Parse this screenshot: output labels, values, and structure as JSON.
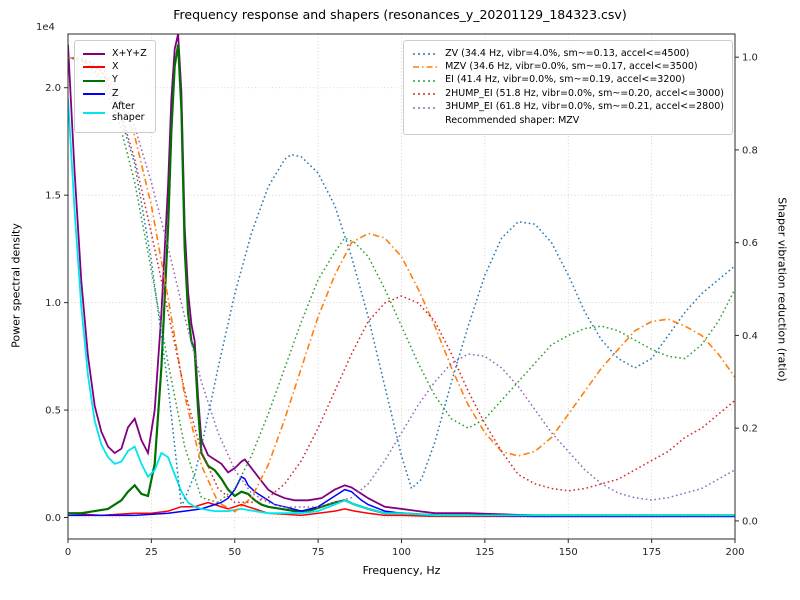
{
  "figure": {
    "title": "Frequency response and shapers (resonances_y_20201129_184323.csv)",
    "xlabel": "Frequency, Hz",
    "ylabel_left": "Power spectral density",
    "ylabel_right": "Shaper vibration reduction (ratio)",
    "offset_text": "1e4",
    "background": "#ffffff"
  },
  "chart_data": {
    "type": "line",
    "title": "Frequency response and shapers (resonances_y_20201129_184323.csv)",
    "xlabel": "Frequency, Hz",
    "ylabel_left": "Power spectral density",
    "ylabel_right": "Shaper vibration reduction (ratio)",
    "y_scale_left": "1e4",
    "xlim": [
      0,
      200
    ],
    "ylim_left": [
      -0.1,
      2.25
    ],
    "ylim_right": [
      -0.039,
      1.05
    ],
    "x_ticks": [
      0,
      25,
      50,
      75,
      100,
      125,
      150,
      175,
      200
    ],
    "y_ticks_left": [
      0.0,
      0.5,
      1.0,
      1.5,
      2.0
    ],
    "y_ticks_right": [
      0.0,
      0.2,
      0.4,
      0.6,
      0.8,
      1.0
    ],
    "grid": true,
    "grid_color": "#c9c9c9",
    "series": [
      {
        "id": "xyz",
        "name": "X+Y+Z",
        "axis": "left",
        "color": "#800080",
        "dash": "solid",
        "width": 1.8,
        "x": [
          0,
          2,
          4,
          6,
          8,
          10,
          12,
          14,
          16,
          18,
          20,
          22,
          24,
          26,
          28,
          30,
          31,
          32,
          33,
          34,
          35,
          36,
          37,
          38,
          39,
          40,
          42,
          44,
          46,
          48,
          50,
          52,
          53,
          54,
          56,
          58,
          60,
          62,
          65,
          68,
          72,
          76,
          80,
          83,
          85,
          88,
          90,
          95,
          100,
          105,
          110,
          120,
          130,
          140,
          160,
          180,
          200
        ],
        "y": [
          2.2,
          1.6,
          1.1,
          0.75,
          0.52,
          0.4,
          0.33,
          0.3,
          0.32,
          0.42,
          0.46,
          0.36,
          0.3,
          0.5,
          0.95,
          1.55,
          1.95,
          2.18,
          2.25,
          1.98,
          1.35,
          1.05,
          0.9,
          0.82,
          0.56,
          0.36,
          0.29,
          0.27,
          0.25,
          0.21,
          0.23,
          0.26,
          0.27,
          0.25,
          0.21,
          0.17,
          0.13,
          0.11,
          0.09,
          0.08,
          0.08,
          0.09,
          0.13,
          0.15,
          0.14,
          0.11,
          0.09,
          0.05,
          0.04,
          0.03,
          0.02,
          0.02,
          0.015,
          0.01,
          0.01,
          0.01,
          0.01
        ]
      },
      {
        "id": "x",
        "name": "X",
        "axis": "left",
        "color": "#ff0000",
        "dash": "solid",
        "width": 1.5,
        "x": [
          0,
          10,
          20,
          25,
          30,
          32,
          34,
          36,
          38,
          40,
          42,
          44,
          46,
          48,
          50,
          52,
          54,
          56,
          58,
          60,
          65,
          70,
          75,
          80,
          83,
          86,
          90,
          95,
          100,
          110,
          120,
          140,
          160,
          180,
          200
        ],
        "y": [
          0.02,
          0.01,
          0.02,
          0.02,
          0.03,
          0.04,
          0.05,
          0.05,
          0.05,
          0.06,
          0.07,
          0.06,
          0.05,
          0.04,
          0.05,
          0.06,
          0.05,
          0.04,
          0.03,
          0.02,
          0.015,
          0.01,
          0.02,
          0.03,
          0.04,
          0.03,
          0.02,
          0.01,
          0.01,
          0.005,
          0.005,
          0.005,
          0.005,
          0.005,
          0.005
        ]
      },
      {
        "id": "y",
        "name": "Y",
        "axis": "left",
        "color": "#007000",
        "dash": "solid",
        "width": 2.2,
        "x": [
          0,
          4,
          8,
          12,
          16,
          18,
          20,
          22,
          24,
          26,
          28,
          30,
          31,
          32,
          33,
          34,
          35,
          36,
          37,
          38,
          39,
          40,
          42,
          44,
          46,
          48,
          50,
          52,
          54,
          56,
          58,
          60,
          64,
          68,
          72,
          76,
          80,
          83,
          86,
          90,
          95,
          100,
          110,
          120,
          140,
          160,
          180,
          200
        ],
        "y": [
          0.02,
          0.02,
          0.03,
          0.04,
          0.08,
          0.12,
          0.15,
          0.11,
          0.1,
          0.25,
          0.7,
          1.35,
          1.8,
          2.1,
          2.2,
          1.9,
          1.25,
          0.95,
          0.82,
          0.78,
          0.5,
          0.3,
          0.24,
          0.22,
          0.18,
          0.13,
          0.1,
          0.12,
          0.11,
          0.08,
          0.06,
          0.05,
          0.04,
          0.03,
          0.03,
          0.05,
          0.07,
          0.08,
          0.06,
          0.04,
          0.02,
          0.02,
          0.01,
          0.01,
          0.01,
          0.01,
          0.01,
          0.01
        ]
      },
      {
        "id": "z",
        "name": "Z",
        "axis": "left",
        "color": "#0000ff",
        "dash": "solid",
        "width": 1.5,
        "x": [
          0,
          10,
          20,
          30,
          35,
          40,
          44,
          46,
          48,
          50,
          52,
          53,
          54,
          56,
          58,
          60,
          62,
          65,
          70,
          75,
          80,
          83,
          85,
          88,
          90,
          95,
          100,
          105,
          110,
          120,
          140,
          160,
          180,
          200
        ],
        "y": [
          0.01,
          0.01,
          0.01,
          0.02,
          0.03,
          0.04,
          0.06,
          0.07,
          0.09,
          0.13,
          0.19,
          0.18,
          0.15,
          0.12,
          0.1,
          0.08,
          0.06,
          0.05,
          0.03,
          0.05,
          0.1,
          0.13,
          0.12,
          0.08,
          0.06,
          0.03,
          0.02,
          0.015,
          0.01,
          0.01,
          0.005,
          0.005,
          0.005,
          0.005
        ]
      },
      {
        "id": "after_shaper",
        "name": "After shaper",
        "axis": "left",
        "color": "#00e5ee",
        "dash": "solid",
        "width": 1.8,
        "x": [
          0,
          2,
          4,
          6,
          8,
          10,
          12,
          14,
          16,
          18,
          20,
          22,
          24,
          26,
          28,
          30,
          32,
          33,
          34,
          36,
          38,
          40,
          44,
          48,
          52,
          56,
          60,
          65,
          70,
          75,
          80,
          83,
          86,
          90,
          95,
          100,
          110,
          120,
          140,
          160,
          180,
          200
        ],
        "y": [
          1.95,
          1.42,
          0.98,
          0.66,
          0.45,
          0.34,
          0.28,
          0.25,
          0.26,
          0.31,
          0.33,
          0.25,
          0.19,
          0.22,
          0.3,
          0.28,
          0.2,
          0.16,
          0.12,
          0.07,
          0.05,
          0.04,
          0.03,
          0.03,
          0.04,
          0.03,
          0.02,
          0.02,
          0.02,
          0.03,
          0.06,
          0.08,
          0.06,
          0.04,
          0.02,
          0.02,
          0.01,
          0.01,
          0.01,
          0.01,
          0.01,
          0.01
        ]
      },
      {
        "id": "zv",
        "name": "ZV",
        "axis": "right",
        "color": "#1f77b4",
        "dash": "dot",
        "width": 1.5,
        "x": [
          0,
          5,
          10,
          15,
          20,
          25,
          30,
          34,
          38,
          40,
          45,
          50,
          55,
          60,
          65,
          67,
          70,
          75,
          80,
          85,
          90,
          95,
          100,
          103,
          106,
          110,
          115,
          120,
          125,
          130,
          135,
          140,
          145,
          150,
          155,
          160,
          165,
          170,
          175,
          180,
          185,
          190,
          195,
          200
        ],
        "y": [
          1.0,
          0.99,
          0.96,
          0.89,
          0.77,
          0.56,
          0.29,
          0.03,
          0.1,
          0.16,
          0.33,
          0.49,
          0.62,
          0.72,
          0.78,
          0.79,
          0.785,
          0.75,
          0.68,
          0.57,
          0.44,
          0.29,
          0.14,
          0.07,
          0.09,
          0.17,
          0.3,
          0.42,
          0.53,
          0.61,
          0.645,
          0.64,
          0.6,
          0.53,
          0.45,
          0.39,
          0.35,
          0.33,
          0.35,
          0.4,
          0.45,
          0.49,
          0.52,
          0.55
        ]
      },
      {
        "id": "mzv",
        "name": "MZV",
        "axis": "right",
        "color": "#ff7f0e",
        "dash": "dashdot",
        "width": 1.6,
        "x": [
          0,
          5,
          10,
          15,
          20,
          25,
          30,
          35,
          40,
          45,
          50,
          55,
          60,
          65,
          70,
          75,
          80,
          85,
          90,
          95,
          100,
          105,
          110,
          115,
          120,
          125,
          130,
          135,
          140,
          145,
          150,
          155,
          160,
          165,
          170,
          175,
          180,
          185,
          190,
          195,
          200
        ],
        "y": [
          1.0,
          0.99,
          0.97,
          0.92,
          0.83,
          0.68,
          0.48,
          0.27,
          0.12,
          0.04,
          0.02,
          0.05,
          0.12,
          0.22,
          0.33,
          0.44,
          0.53,
          0.6,
          0.62,
          0.61,
          0.57,
          0.5,
          0.42,
          0.33,
          0.25,
          0.19,
          0.15,
          0.14,
          0.15,
          0.18,
          0.23,
          0.28,
          0.33,
          0.37,
          0.41,
          0.43,
          0.435,
          0.42,
          0.4,
          0.36,
          0.31
        ]
      },
      {
        "id": "ei",
        "name": "EI",
        "axis": "right",
        "color": "#2ca02c",
        "dash": "dot",
        "width": 1.5,
        "x": [
          0,
          5,
          10,
          15,
          20,
          25,
          30,
          35,
          40,
          45,
          50,
          55,
          60,
          65,
          70,
          75,
          80,
          83,
          86,
          90,
          95,
          100,
          105,
          110,
          115,
          120,
          125,
          130,
          135,
          140,
          145,
          150,
          155,
          160,
          165,
          170,
          175,
          180,
          185,
          190,
          195,
          200
        ],
        "y": [
          1.0,
          0.99,
          0.95,
          0.87,
          0.73,
          0.54,
          0.34,
          0.16,
          0.05,
          0.04,
          0.07,
          0.14,
          0.23,
          0.33,
          0.43,
          0.52,
          0.58,
          0.61,
          0.6,
          0.57,
          0.5,
          0.42,
          0.34,
          0.27,
          0.22,
          0.2,
          0.22,
          0.26,
          0.3,
          0.34,
          0.38,
          0.4,
          0.415,
          0.42,
          0.41,
          0.39,
          0.37,
          0.355,
          0.35,
          0.38,
          0.43,
          0.5
        ]
      },
      {
        "id": "hump2_ei",
        "name": "2HUMP_EI",
        "axis": "right",
        "color": "#d62728",
        "dash": "dot",
        "width": 1.5,
        "x": [
          0,
          5,
          10,
          15,
          20,
          25,
          30,
          35,
          40,
          45,
          50,
          55,
          60,
          65,
          70,
          75,
          80,
          85,
          90,
          95,
          100,
          105,
          110,
          115,
          120,
          125,
          130,
          135,
          140,
          145,
          150,
          155,
          160,
          165,
          170,
          175,
          180,
          185,
          190,
          195,
          200
        ],
        "y": [
          1.0,
          0.995,
          0.97,
          0.9,
          0.78,
          0.62,
          0.45,
          0.28,
          0.15,
          0.07,
          0.04,
          0.04,
          0.05,
          0.08,
          0.13,
          0.2,
          0.28,
          0.36,
          0.43,
          0.47,
          0.485,
          0.47,
          0.43,
          0.36,
          0.28,
          0.21,
          0.15,
          0.1,
          0.08,
          0.07,
          0.065,
          0.07,
          0.08,
          0.09,
          0.11,
          0.13,
          0.15,
          0.18,
          0.2,
          0.23,
          0.26
        ]
      },
      {
        "id": "hump3_ei",
        "name": "3HUMP_EI",
        "axis": "right",
        "color": "#9467bd",
        "dash": "dot",
        "width": 1.5,
        "x": [
          0,
          5,
          10,
          15,
          20,
          25,
          30,
          35,
          40,
          45,
          50,
          55,
          60,
          65,
          70,
          75,
          80,
          85,
          90,
          95,
          100,
          105,
          110,
          115,
          120,
          125,
          130,
          135,
          140,
          145,
          150,
          155,
          160,
          165,
          170,
          175,
          180,
          185,
          190,
          195,
          200
        ],
        "y": [
          1.0,
          0.995,
          0.98,
          0.93,
          0.85,
          0.73,
          0.59,
          0.44,
          0.3,
          0.19,
          0.11,
          0.06,
          0.04,
          0.03,
          0.03,
          0.03,
          0.04,
          0.05,
          0.08,
          0.13,
          0.19,
          0.25,
          0.3,
          0.34,
          0.36,
          0.355,
          0.33,
          0.29,
          0.24,
          0.19,
          0.15,
          0.11,
          0.08,
          0.06,
          0.05,
          0.045,
          0.05,
          0.06,
          0.07,
          0.09,
          0.11
        ]
      }
    ],
    "legend_left": {
      "items": [
        {
          "id": "xyz",
          "label": "X+Y+Z",
          "color": "#800080"
        },
        {
          "id": "x",
          "label": "X",
          "color": "#ff0000"
        },
        {
          "id": "y",
          "label": "Y",
          "color": "#007000"
        },
        {
          "id": "z",
          "label": "Z",
          "color": "#0000ff"
        },
        {
          "id": "after_shaper",
          "label": "After\nshaper",
          "color": "#00e5ee"
        }
      ]
    },
    "legend_right": {
      "items": [
        {
          "id": "zv",
          "label": "ZV (34.4 Hz, vibr=4.0%, sm~=0.13, accel<=4500)",
          "color": "#1f77b4",
          "dash": "dot"
        },
        {
          "id": "mzv",
          "label": "MZV (34.6 Hz, vibr=0.0%, sm~=0.17, accel<=3500)",
          "color": "#ff7f0e",
          "dash": "dashdot"
        },
        {
          "id": "ei",
          "label": "EI (41.4 Hz, vibr=0.0%, sm~=0.19, accel<=3200)",
          "color": "#2ca02c",
          "dash": "dot"
        },
        {
          "id": "hump2_ei",
          "label": "2HUMP_EI (51.8 Hz, vibr=0.0%, sm~=0.20, accel<=3000)",
          "color": "#d62728",
          "dash": "dot"
        },
        {
          "id": "hump3_ei",
          "label": "3HUMP_EI (61.8 Hz, vibr=0.0%, sm~=0.21, accel<=2800)",
          "color": "#9467bd",
          "dash": "dot"
        }
      ],
      "note": "Recommended shaper: MZV"
    }
  }
}
